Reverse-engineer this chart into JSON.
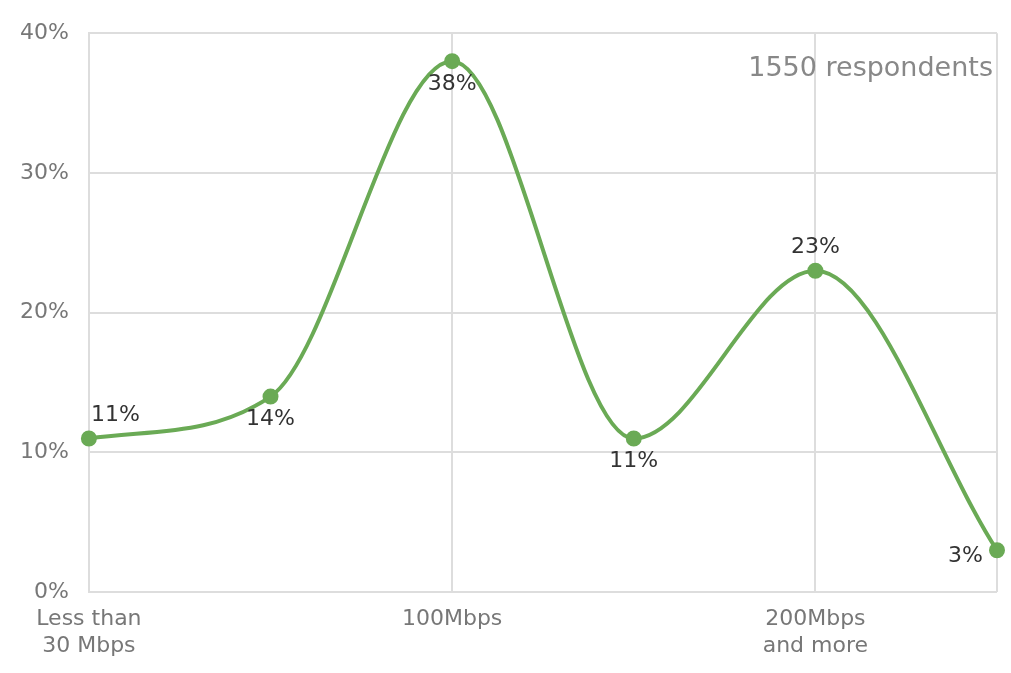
{
  "chart_data": {
    "type": "line",
    "categories": [
      "Less than 30 Mbps",
      null,
      "100Mbps",
      null,
      "200Mbps and more",
      null
    ],
    "series": [
      {
        "color": "#6aaa55",
        "values": [
          11,
          14,
          38,
          11,
          23,
          3
        ],
        "value_labels": [
          "11%",
          "14%",
          "38%",
          "11%",
          "23%",
          "3%"
        ]
      }
    ],
    "ylim": [
      0,
      40
    ],
    "yticks": [
      {
        "value": 0,
        "label": "0%"
      },
      {
        "value": 10,
        "label": "10%"
      },
      {
        "value": 20,
        "label": "20%"
      },
      {
        "value": 30,
        "label": "30%"
      },
      {
        "value": 40,
        "label": "40%"
      }
    ],
    "grid": true,
    "legend": false,
    "marker": "circle",
    "line_style": "solid",
    "annotations": [
      "1550 respondents"
    ]
  }
}
